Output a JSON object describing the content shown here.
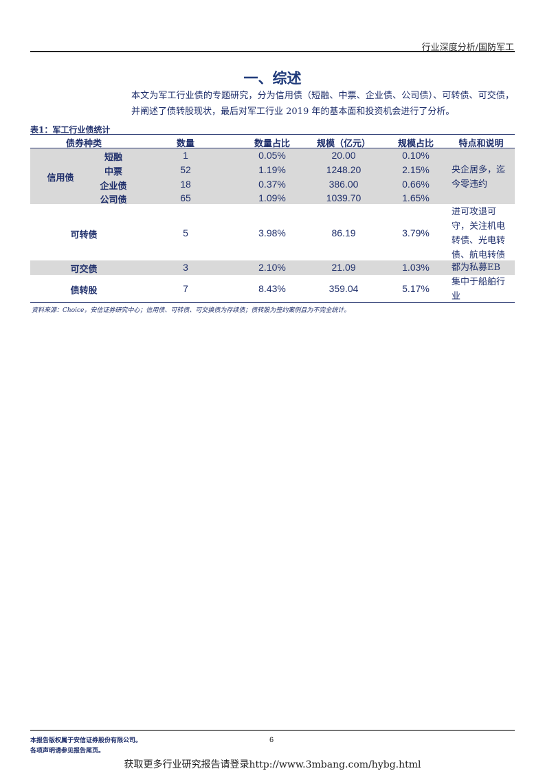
{
  "header": {
    "section": "行业深度分析/国防军工"
  },
  "title": "一、综述",
  "intro": "本文为军工行业债的专题研究，分为信用债（短融、中票、企业债、公司债）、可转债、可交债，并阐述了债转股现状，最后对军工行业 2019 年的基本面和投资机会进行了分析。",
  "table": {
    "caption": "表1：军工行业债统计",
    "headers": [
      "债券种类",
      "数量",
      "数量占比",
      "规模（亿元）",
      "规模占比",
      "特点和说明"
    ],
    "credit_group": {
      "label": "信用债",
      "note": "央企居多，迄今零违约",
      "rows": [
        {
          "type": "短融",
          "count": "1",
          "count_pct": "0.05%",
          "scale": "20.00",
          "scale_pct": "0.10%"
        },
        {
          "type": "中票",
          "count": "52",
          "count_pct": "1.19%",
          "scale": "1248.20",
          "scale_pct": "2.15%"
        },
        {
          "type": "企业债",
          "count": "18",
          "count_pct": "0.37%",
          "scale": "386.00",
          "scale_pct": "0.66%"
        },
        {
          "type": "公司债",
          "count": "65",
          "count_pct": "1.09%",
          "scale": "1039.70",
          "scale_pct": "1.65%"
        }
      ]
    },
    "rows": [
      {
        "type": "可转债",
        "count": "5",
        "count_pct": "3.98%",
        "scale": "86.19",
        "scale_pct": "3.79%",
        "note": "进可攻退可守，关注机电转债、光电转债、航电转债"
      },
      {
        "type": "可交债",
        "count": "3",
        "count_pct": "2.10%",
        "scale": "21.09",
        "scale_pct": "1.03%",
        "note": "都为私募EB"
      },
      {
        "type": "债转股",
        "count": "7",
        "count_pct": "8.43%",
        "scale": "359.04",
        "scale_pct": "5.17%",
        "note": "集中于船舶行业"
      }
    ],
    "source": "资料来源：Choice，安信证券研究中心；信用债、可转债、可交换债为存续债；债转股为签约案例且为不完全统计。"
  },
  "footer": {
    "copyright": "本报告版权属于安信证券股份有限公司。",
    "disclaimer": "各项声明请参见报告尾页。",
    "page": "6",
    "promo": "获取更多行业研究报告请登录http://www.3mbang.com/hybg.html"
  }
}
